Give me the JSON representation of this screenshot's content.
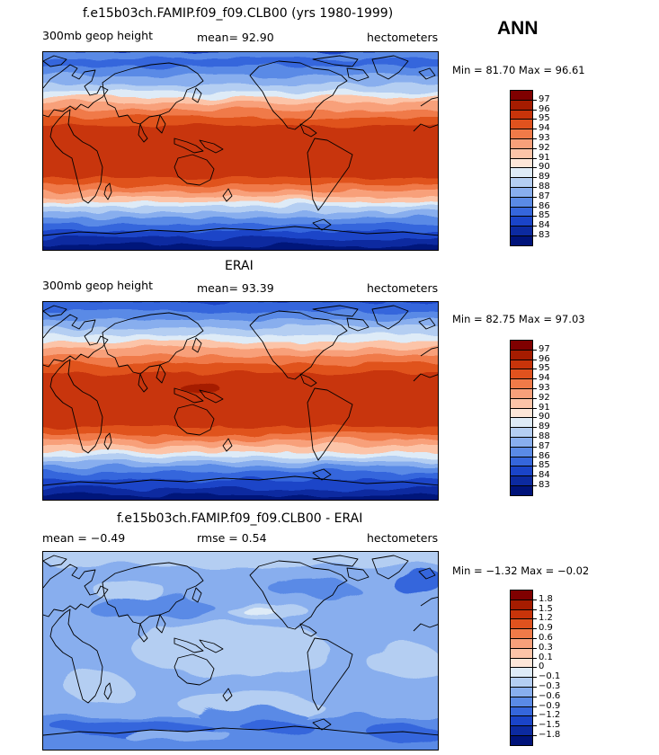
{
  "season": "ANN",
  "panels": [
    {
      "title": "f.e15b03ch.FAMIP.f09_f09.CLB00 (yrs 1980-1999)",
      "left": "300mb geop height",
      "center": "mean=   92.90",
      "right": "hectometers",
      "minmax": "Min =   81.70  Max =   96.61",
      "levels": [
        "97",
        "96",
        "95",
        "94",
        "93",
        "92",
        "91",
        "90",
        "89",
        "88",
        "87",
        "86",
        "85",
        "84",
        "83"
      ]
    },
    {
      "title": "ERAI",
      "left": "300mb geop height",
      "center": "mean=   93.39",
      "right": "hectometers",
      "minmax": "Min =   82.75  Max =   97.03",
      "levels": [
        "97",
        "96",
        "95",
        "94",
        "93",
        "92",
        "91",
        "90",
        "89",
        "88",
        "87",
        "86",
        "85",
        "84",
        "83"
      ]
    },
    {
      "title": "f.e15b03ch.FAMIP.f09_f09.CLB00 - ERAI",
      "left": "mean =   −0.49",
      "center": "rmse =    0.54",
      "right": "hectometers",
      "minmax": "Min =   −1.32  Max =   −0.02",
      "levels": [
        "1.8",
        "1.5",
        "1.2",
        "0.9",
        "0.6",
        "0.3",
        "0.1",
        "0",
        "−0.1",
        "−0.3",
        "−0.6",
        "−0.9",
        "−1.2",
        "−1.5",
        "−1.8"
      ]
    }
  ],
  "palette": [
    "#7f0000",
    "#a51c00",
    "#c8340a",
    "#e0521e",
    "#f07a48",
    "#f8a07a",
    "#fcc4a8",
    "#fde6d8",
    "#deebf7",
    "#b4cef2",
    "#88aeee",
    "#5a8ae6",
    "#3566dc",
    "#1a44c8",
    "#0c2aa0",
    "#00137a"
  ]
}
